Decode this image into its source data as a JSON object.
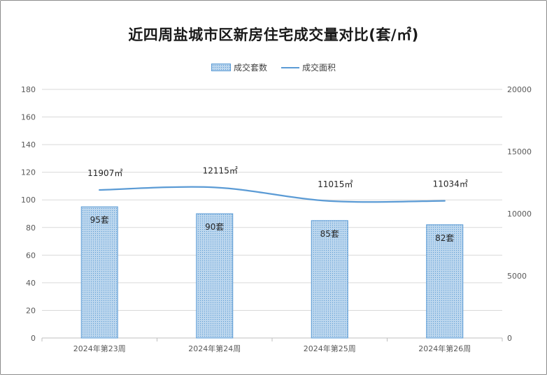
{
  "title": "近四周盐城市区新房住宅成交量对比(套/㎡)",
  "legend": {
    "bar_label": "成交套数",
    "line_label": "成交面积"
  },
  "colors": {
    "bar_fill": "#bdd7ee",
    "bar_stroke": "#5b9bd5",
    "line": "#5b9bd5",
    "grid": "#d9d9d9"
  },
  "chart_data": {
    "type": "bar",
    "title": "近四周盐城市区新房住宅成交量对比(套/㎡)",
    "categories": [
      "2024年第23周",
      "2024年第24周",
      "2024年第25周",
      "2024年第26周"
    ],
    "series": [
      {
        "name": "成交套数",
        "type": "bar",
        "axis": "left",
        "values": [
          95,
          90,
          85,
          82
        ],
        "labels": [
          "95套",
          "90套",
          "85套",
          "82套"
        ]
      },
      {
        "name": "成交面积",
        "type": "line",
        "axis": "right",
        "smooth": true,
        "values": [
          11907,
          12115,
          11015,
          11034
        ],
        "labels": [
          "11907㎡",
          "12115㎡",
          "11015㎡",
          "11034㎡"
        ]
      }
    ],
    "y_left": {
      "min": 0,
      "max": 180,
      "ticks": [
        0,
        20,
        40,
        60,
        80,
        100,
        120,
        140,
        160,
        180
      ]
    },
    "y_right": {
      "min": 0,
      "max": 20000,
      "ticks": [
        0,
        5000,
        10000,
        15000,
        20000
      ]
    },
    "grid": true,
    "legend_position": "top"
  }
}
